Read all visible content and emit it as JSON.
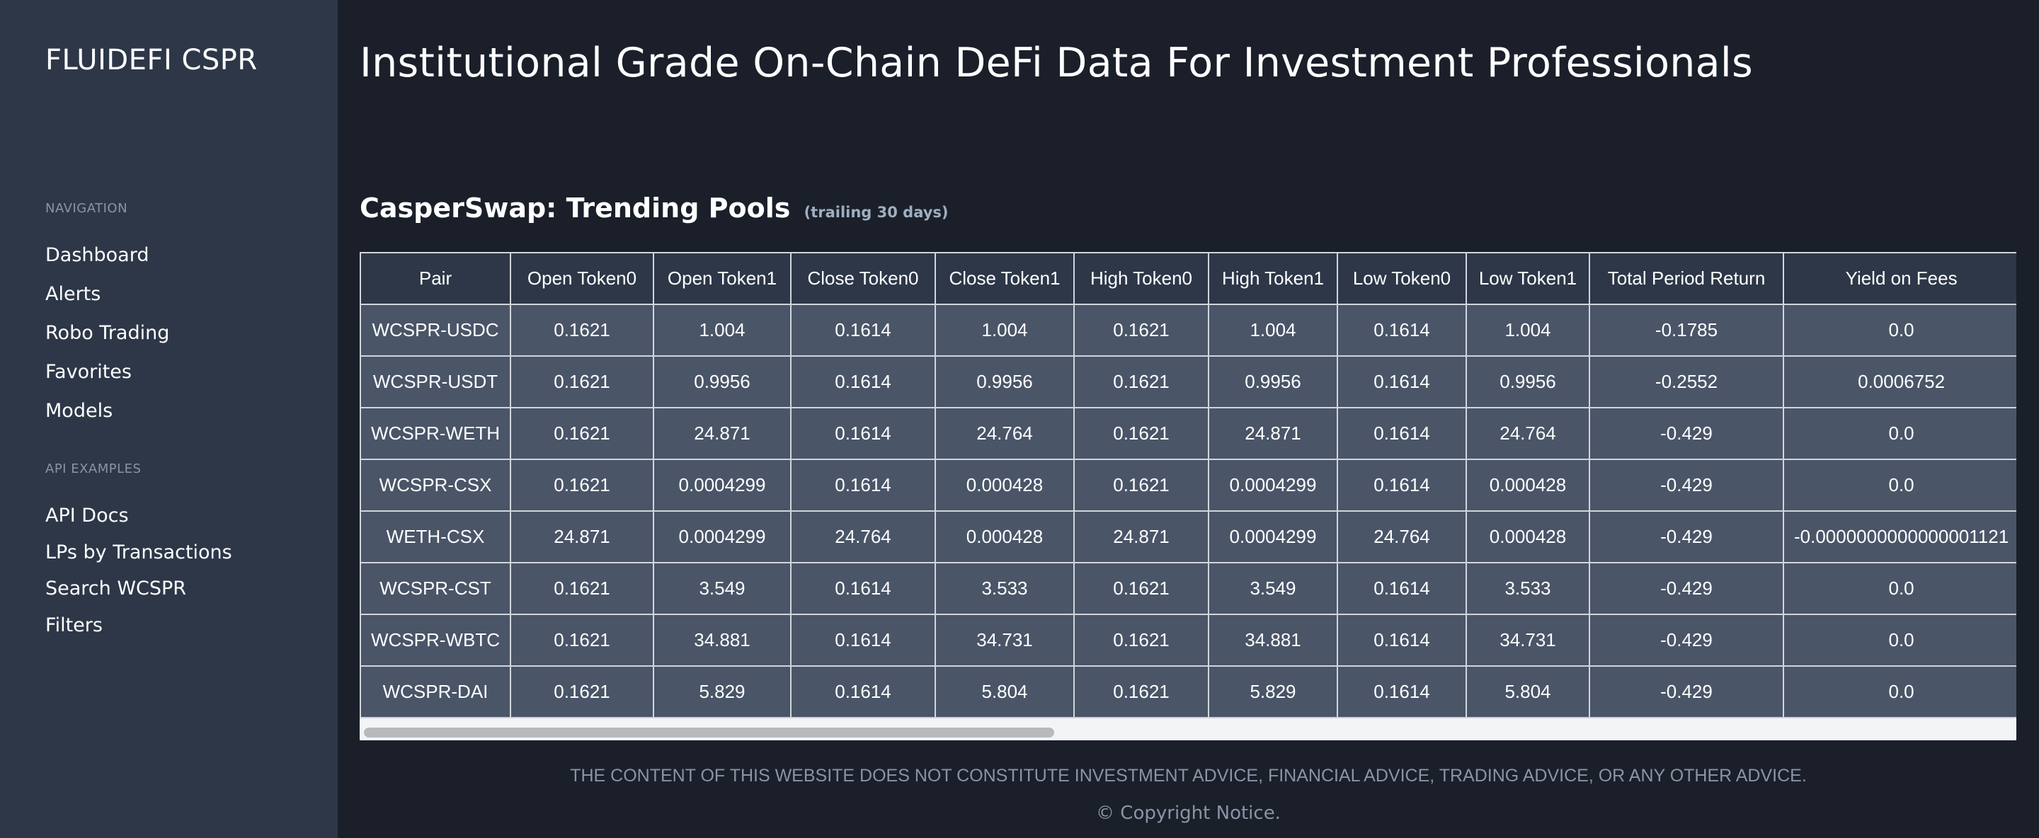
{
  "sidebar": {
    "brand": "FLUIDEFI CSPR",
    "navigation_heading": "NAVIGATION",
    "navigation_items": [
      "Dashboard",
      "Alerts",
      "Robo Trading",
      "Favorites",
      "Models"
    ],
    "api_heading": "API EXAMPLES",
    "api_items": [
      "API Docs",
      "LPs by Transactions",
      "Search WCSPR",
      "Filters"
    ]
  },
  "main": {
    "headline": "Institutional Grade On-Chain DeFi Data For Investment Professionals",
    "section_title": "CasperSwap: Trending Pools",
    "section_subtitle": "(trailing 30 days)"
  },
  "table": {
    "columns": [
      "Pair",
      "Open Token0",
      "Open Token1",
      "Close Token0",
      "Close Token1",
      "High Token0",
      "High Token1",
      "Low Token0",
      "Low Token1",
      "Total Period Return",
      "Yield on Fees"
    ],
    "rows": [
      [
        "WCSPR-USDC",
        "0.1621",
        "1.004",
        "0.1614",
        "1.004",
        "0.1621",
        "1.004",
        "0.1614",
        "1.004",
        "-0.1785",
        "0.0"
      ],
      [
        "WCSPR-USDT",
        "0.1621",
        "0.9956",
        "0.1614",
        "0.9956",
        "0.1621",
        "0.9956",
        "0.1614",
        "0.9956",
        "-0.2552",
        "0.0006752"
      ],
      [
        "WCSPR-WETH",
        "0.1621",
        "24.871",
        "0.1614",
        "24.764",
        "0.1621",
        "24.871",
        "0.1614",
        "24.764",
        "-0.429",
        "0.0"
      ],
      [
        "WCSPR-CSX",
        "0.1621",
        "0.0004299",
        "0.1614",
        "0.000428",
        "0.1621",
        "0.0004299",
        "0.1614",
        "0.000428",
        "-0.429",
        "0.0"
      ],
      [
        "WETH-CSX",
        "24.871",
        "0.0004299",
        "24.764",
        "0.000428",
        "24.871",
        "0.0004299",
        "24.764",
        "0.000428",
        "-0.429",
        "-0.0000000000000001121"
      ],
      [
        "WCSPR-CST",
        "0.1621",
        "3.549",
        "0.1614",
        "3.533",
        "0.1621",
        "3.549",
        "0.1614",
        "3.533",
        "-0.429",
        "0.0"
      ],
      [
        "WCSPR-WBTC",
        "0.1621",
        "34.881",
        "0.1614",
        "34.731",
        "0.1621",
        "34.881",
        "0.1614",
        "34.731",
        "-0.429",
        "0.0"
      ],
      [
        "WCSPR-DAI",
        "0.1621",
        "5.829",
        "0.1614",
        "5.804",
        "0.1621",
        "5.829",
        "0.1614",
        "5.804",
        "-0.429",
        "0.0"
      ]
    ]
  },
  "footer": {
    "disclaimer": "THE CONTENT OF THIS WEBSITE DOES NOT CONSTITUTE INVESTMENT ADVICE, FINANCIAL ADVICE, TRADING ADVICE, OR ANY OTHER ADVICE.",
    "copyright": "© Copyright Notice."
  }
}
